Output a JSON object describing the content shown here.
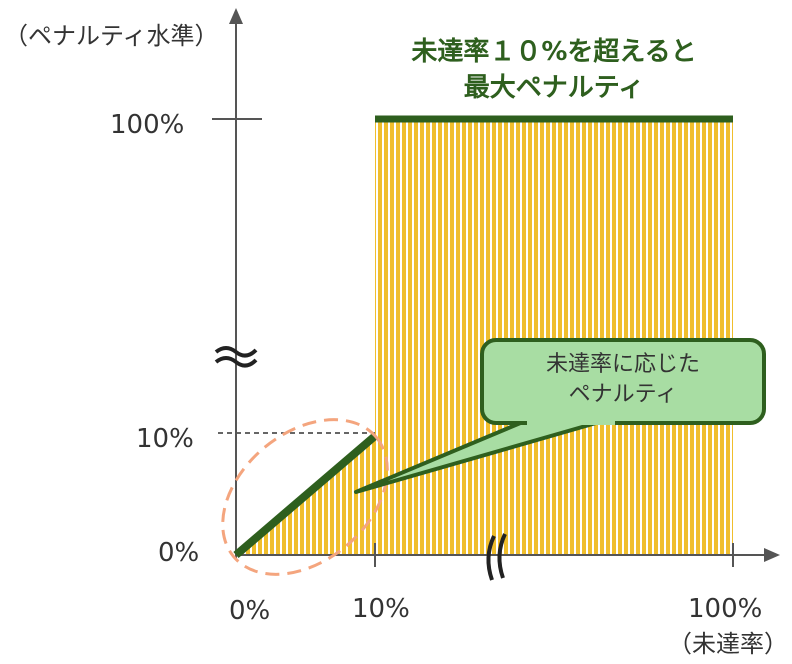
{
  "axes": {
    "y_title": "（ペナルティ水準）",
    "x_title": "（未達率）",
    "y_ticks": [
      "0%",
      "10%",
      "100%"
    ],
    "x_ticks": [
      "0%",
      "10%",
      "100%"
    ]
  },
  "annotations": {
    "max_penalty_line1": "未達率１０%を超えると",
    "max_penalty_line2": "最大ペナルティ",
    "callout_line1": "未達率に応じた",
    "callout_line2": "ペナルティ"
  },
  "colors": {
    "stripe_fill": "#f0be2c",
    "line": "#2e5f1e",
    "callout_fill": "#a8dda3",
    "callout_border": "#2e5f1e",
    "highlight_ellipse": "#f4a57e",
    "axis": "#555555"
  },
  "chart_data": {
    "type": "line",
    "x": [
      0,
      10,
      10,
      100
    ],
    "y": [
      0,
      10,
      100,
      100
    ],
    "xlim": [
      0,
      100
    ],
    "ylim": [
      0,
      100
    ],
    "axis_breaks": [
      "x between 10% and 100%",
      "y between 10% and 100%"
    ]
  }
}
